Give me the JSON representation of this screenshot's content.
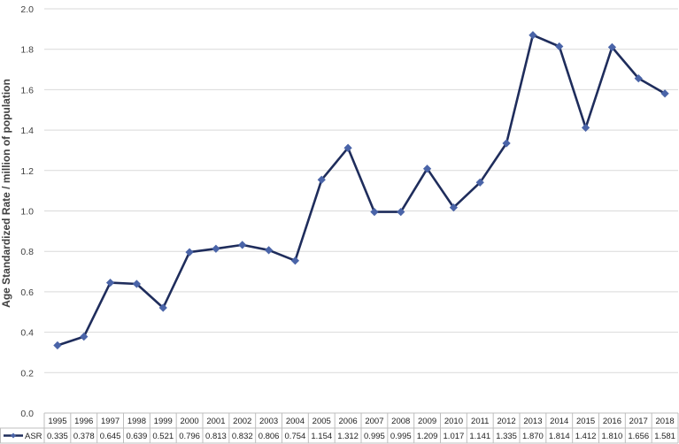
{
  "chart_data": {
    "type": "line",
    "x": [
      "1995",
      "1996",
      "1997",
      "1998",
      "1999",
      "2000",
      "2001",
      "2002",
      "2003",
      "2004",
      "2005",
      "2006",
      "2007",
      "2008",
      "2009",
      "2010",
      "2011",
      "2012",
      "2013",
      "2014",
      "2015",
      "2016",
      "2017",
      "2018"
    ],
    "series": [
      {
        "name": "ASR",
        "values": [
          0.335,
          0.378,
          0.645,
          0.639,
          0.521,
          0.796,
          0.813,
          0.832,
          0.806,
          0.754,
          1.154,
          1.312,
          0.995,
          0.995,
          1.209,
          1.017,
          1.141,
          1.335,
          1.87,
          1.814,
          1.412,
          1.81,
          1.656,
          1.581
        ],
        "labels": [
          "0.335",
          "0.378",
          "0.645",
          "0.639",
          "0.521",
          "0.796",
          "0.813",
          "0.832",
          "0.806",
          "0.754",
          "1.154",
          "1.312",
          "0.995",
          "0.995",
          "1.209",
          "1.017",
          "1.141",
          "1.335",
          "1.870",
          "1.814",
          "1.412",
          "1.810",
          "1.656",
          "1.581"
        ]
      }
    ],
    "ylabel": "Age Standardized Rate / million of population",
    "ylim": [
      0,
      2.0
    ],
    "yticks": [
      "0.0",
      "0.2",
      "0.4",
      "0.6",
      "0.8",
      "1.0",
      "1.2",
      "1.4",
      "1.6",
      "1.8",
      "2.0"
    ],
    "grid": true,
    "legend": "data-table",
    "line_color": "#1f2d5c",
    "marker_color": "#4a64a8"
  }
}
